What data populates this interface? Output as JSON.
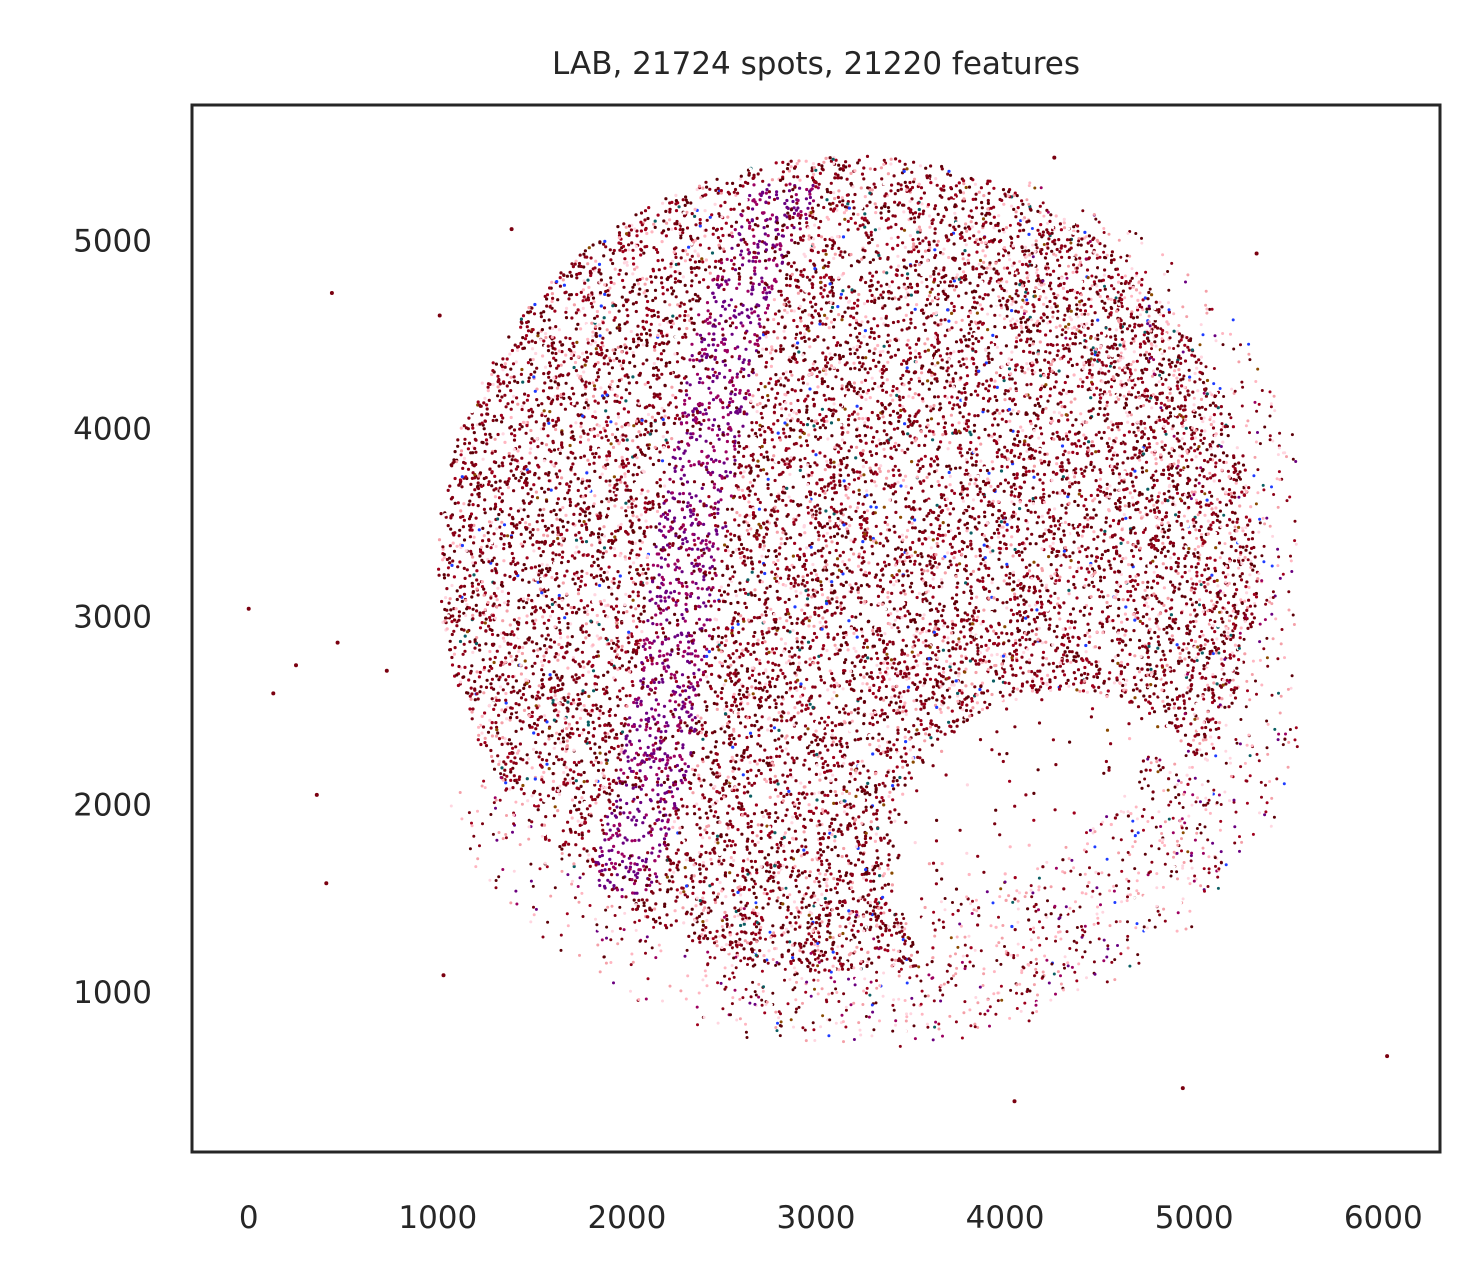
{
  "chart_data": {
    "type": "scatter",
    "title": "LAB, 21724 spots, 21220 features",
    "xlabel": "",
    "ylabel": "",
    "xlim": [
      -300,
      6300
    ],
    "ylim": [
      150,
      5720
    ],
    "x_ticks": [
      "0",
      "1000",
      "2000",
      "3000",
      "4000",
      "5000",
      "6000"
    ],
    "y_ticks": [
      "1000",
      "2000",
      "3000",
      "4000",
      "5000"
    ],
    "grid": false,
    "legend": "none",
    "palette": [
      "#7a0010",
      "#8b0016",
      "#5c0008",
      "#a0001c",
      "#ffb6c1",
      "#f4a0a8",
      "#ffd6e0",
      "#ffffff",
      "#6a0080",
      "#9c0060",
      "#1e3cff",
      "#0b5f63",
      "#8a4a00"
    ],
    "spot_count": 21724,
    "feature_count": 21220,
    "main_cluster": {
      "center": [
        3170,
        3280
      ],
      "radius": 2170
    },
    "outer_ring": {
      "center": [
        3370,
        3080
      ],
      "radius": 2370
    },
    "purple_band": [
      [
        2850,
        5300
      ],
      [
        2550,
        4600
      ],
      [
        2350,
        3500
      ],
      [
        2150,
        2200
      ],
      [
        1950,
        1500
      ]
    ],
    "outliers": [
      {
        "x": 0,
        "y": 3040
      },
      {
        "x": 440,
        "y": 4720
      },
      {
        "x": 1010,
        "y": 4600
      },
      {
        "x": 1390,
        "y": 5060
      },
      {
        "x": 4260,
        "y": 5440
      },
      {
        "x": 5330,
        "y": 4930
      },
      {
        "x": 130,
        "y": 2590
      },
      {
        "x": 250,
        "y": 2740
      },
      {
        "x": 360,
        "y": 2050
      },
      {
        "x": 410,
        "y": 1580
      },
      {
        "x": 470,
        "y": 2860
      },
      {
        "x": 730,
        "y": 2710
      },
      {
        "x": 1030,
        "y": 1090
      },
      {
        "x": 4050,
        "y": 420
      },
      {
        "x": 4940,
        "y": 490
      },
      {
        "x": 6020,
        "y": 660
      }
    ]
  }
}
